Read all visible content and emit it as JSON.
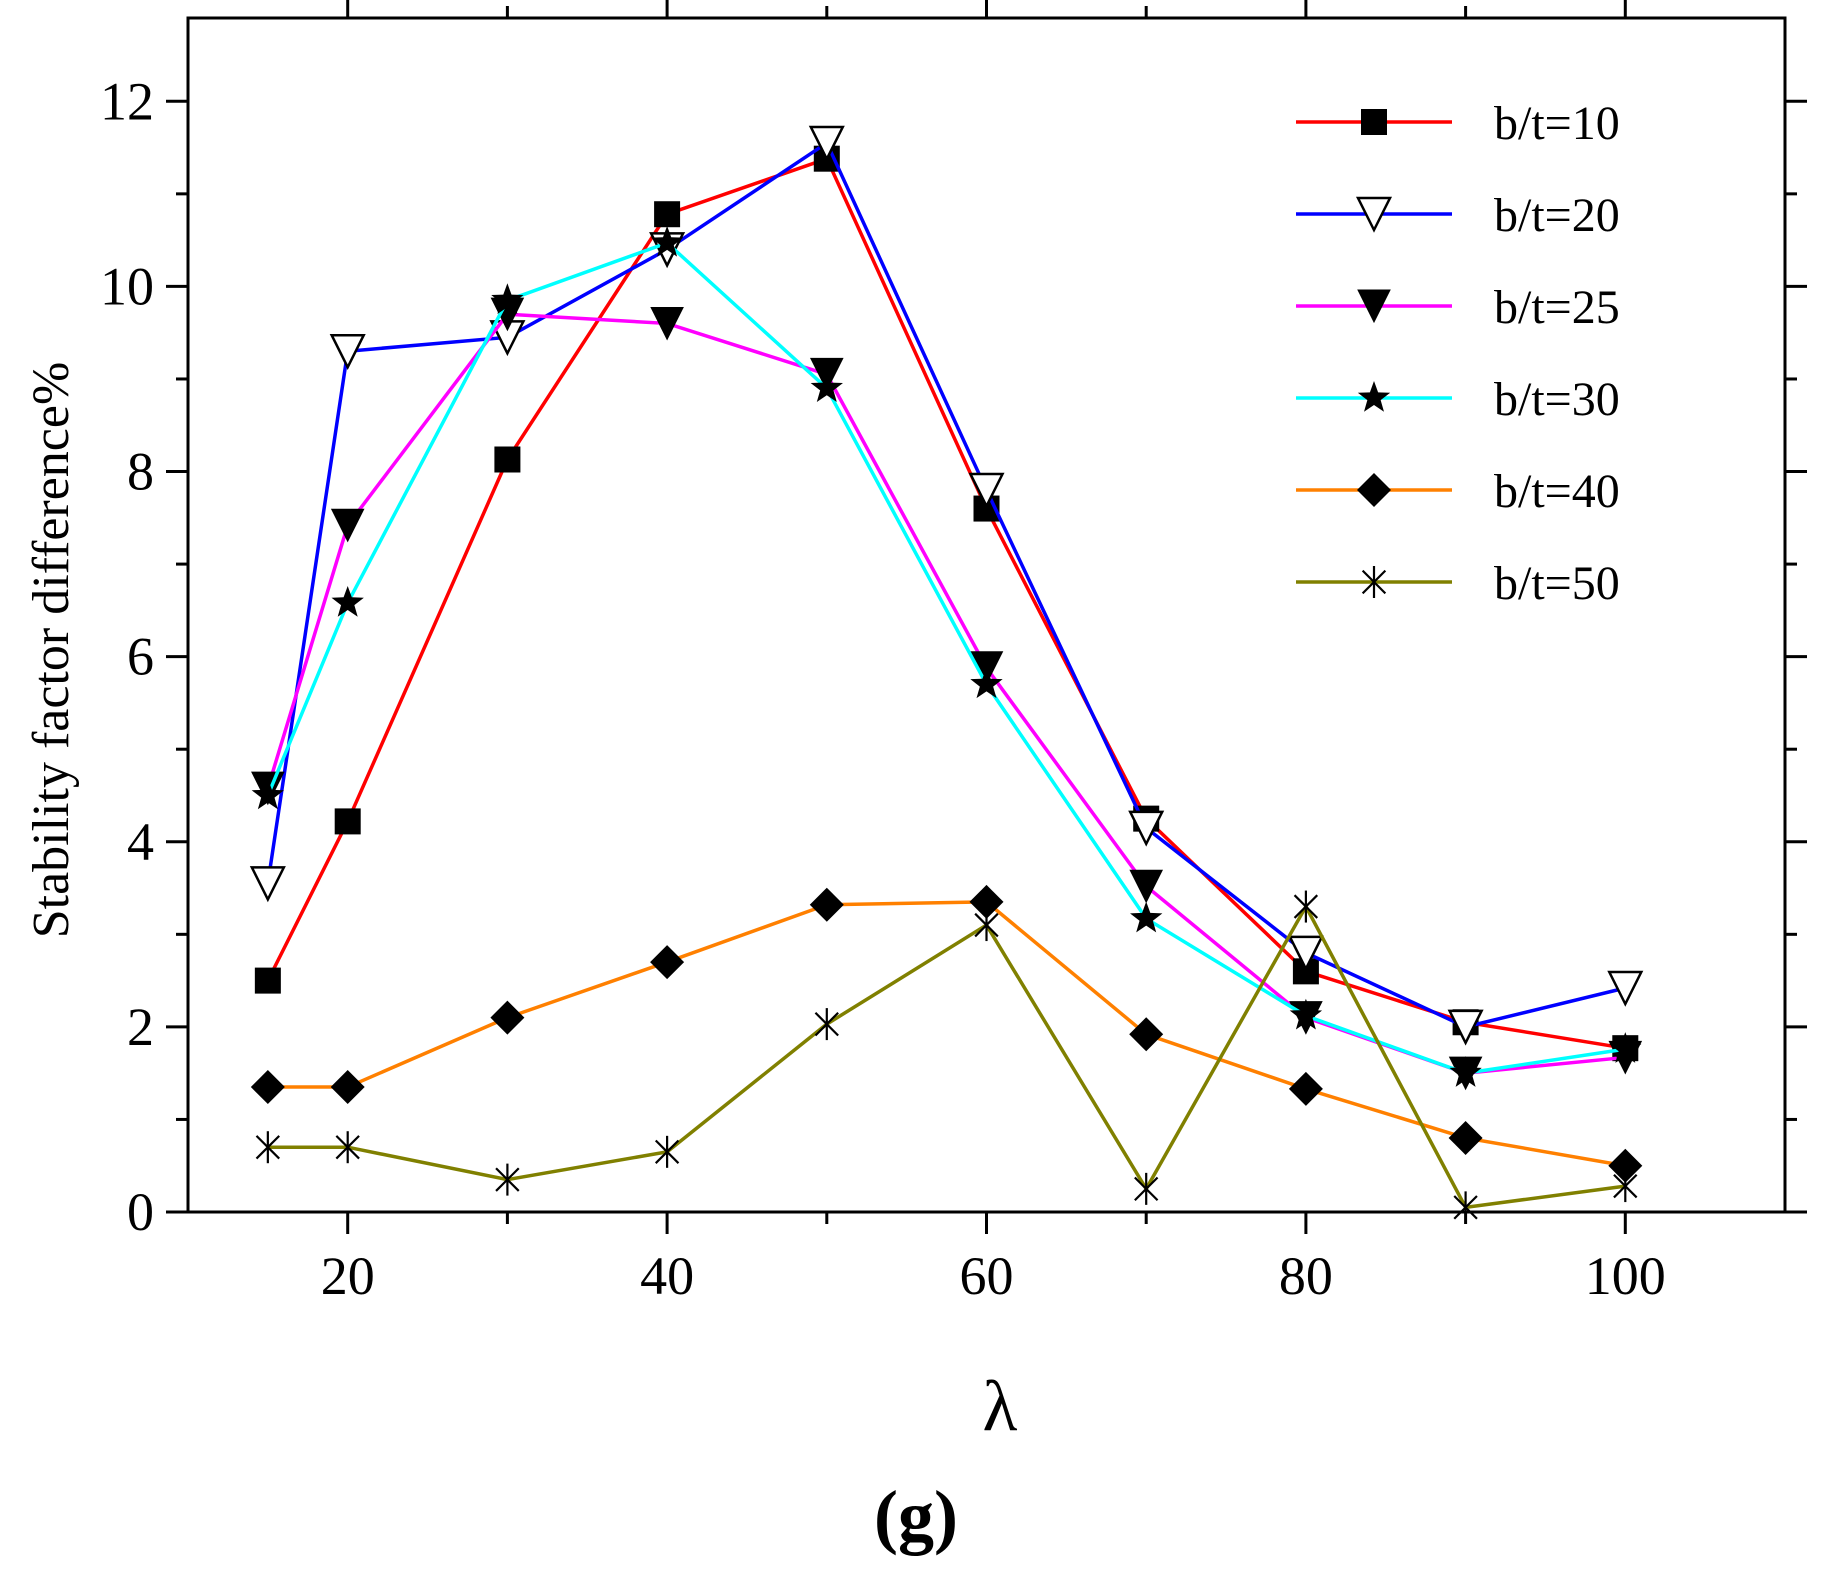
{
  "chart_data": {
    "type": "line",
    "title": "",
    "panel_label": "(g)",
    "xlabel": "λ",
    "ylabel": "Stability factor difference%",
    "xlim": [
      10,
      110
    ],
    "ylim": [
      0,
      12.9
    ],
    "xticks": [
      20,
      40,
      60,
      80,
      100
    ],
    "yticks": [
      0,
      2,
      4,
      6,
      8,
      10,
      12
    ],
    "x": [
      15,
      20,
      30,
      40,
      50,
      60,
      70,
      80,
      90,
      100
    ],
    "legend_position": "top-right",
    "grid": false,
    "series": [
      {
        "name": "b/t=10",
        "color": "#ff0000",
        "marker": "square-filled",
        "values": [
          2.5,
          4.22,
          8.13,
          10.78,
          11.38,
          7.6,
          4.25,
          2.6,
          2.05,
          1.77
        ]
      },
      {
        "name": "b/t=20",
        "color": "#0000ff",
        "marker": "triangle-down-open",
        "values": [
          3.55,
          9.3,
          9.45,
          10.4,
          11.55,
          7.8,
          4.15,
          2.8,
          2.0,
          2.42
        ]
      },
      {
        "name": "b/t=25",
        "color": "#ff00ff",
        "marker": "triangle-down-filled",
        "values": [
          4.58,
          7.42,
          9.7,
          9.6,
          9.05,
          5.88,
          3.52,
          2.1,
          1.5,
          1.67
        ]
      },
      {
        "name": "b/t=30",
        "color": "#00ffff",
        "marker": "star-filled",
        "values": [
          4.5,
          6.58,
          9.85,
          10.47,
          8.9,
          5.7,
          3.17,
          2.12,
          1.5,
          1.76
        ]
      },
      {
        "name": "b/t=40",
        "color": "#ff8000",
        "marker": "diamond-filled",
        "values": [
          1.35,
          1.35,
          2.1,
          2.7,
          3.32,
          3.35,
          1.92,
          1.33,
          0.8,
          0.5
        ]
      },
      {
        "name": "b/t=50",
        "color": "#808000",
        "marker": "asterisk",
        "values": [
          0.7,
          0.7,
          0.35,
          0.65,
          2.03,
          3.1,
          0.25,
          3.3,
          0.05,
          0.28
        ]
      }
    ]
  }
}
